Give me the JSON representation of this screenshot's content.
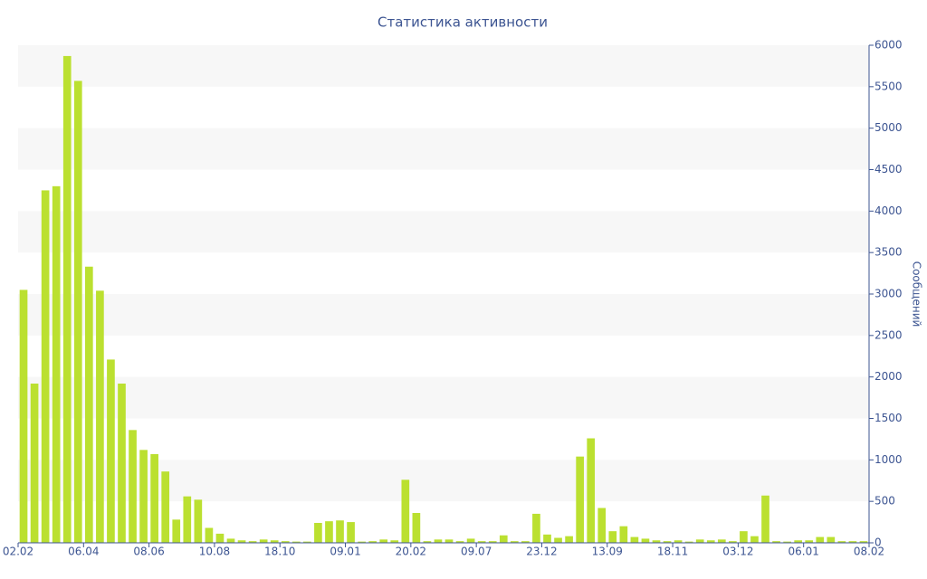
{
  "chart_data": {
    "type": "bar",
    "title": "Статистика активности",
    "y_label": "Сообщений",
    "values": [
      3050,
      1920,
      4250,
      4300,
      5870,
      5570,
      3330,
      3040,
      2210,
      1920,
      1360,
      1120,
      1070,
      860,
      280,
      560,
      520,
      180,
      110,
      50,
      30,
      20,
      40,
      30,
      20,
      15,
      15,
      240,
      260,
      270,
      250,
      15,
      20,
      40,
      30,
      760,
      360,
      20,
      40,
      40,
      20,
      50,
      20,
      20,
      90,
      20,
      20,
      350,
      100,
      60,
      80,
      1040,
      1260,
      420,
      140,
      200,
      70,
      50,
      30,
      20,
      30,
      15,
      40,
      30,
      40,
      20,
      140,
      80,
      570,
      20,
      15,
      30,
      30,
      70,
      70,
      20,
      20,
      20
    ],
    "color": "#bbe030",
    "xlim": [
      0,
      78
    ],
    "xticks": [
      {
        "value": 0,
        "label": "02.02"
      },
      {
        "value": 6,
        "label": "06.04"
      },
      {
        "value": 12,
        "label": "08.06"
      },
      {
        "value": 18,
        "label": "10.08"
      },
      {
        "value": 24,
        "label": "18.10"
      },
      {
        "value": 30,
        "label": "09.01"
      },
      {
        "value": 36,
        "label": "20.02"
      },
      {
        "value": 42,
        "label": "09.07"
      },
      {
        "value": 48,
        "label": "23.12"
      },
      {
        "value": 54,
        "label": "13.09"
      },
      {
        "value": 60,
        "label": "18.11"
      },
      {
        "value": 66,
        "label": "03.12"
      },
      {
        "value": 72,
        "label": "06.01"
      },
      {
        "value": 78,
        "label": "08.02"
      }
    ],
    "ylim": [
      0,
      6000
    ],
    "yticks": [
      0,
      500,
      1000,
      1500,
      2000,
      2500,
      3000,
      3500,
      4000,
      4500,
      5000,
      5500,
      6000
    ],
    "grid": true,
    "y_axis_side": "right"
  }
}
